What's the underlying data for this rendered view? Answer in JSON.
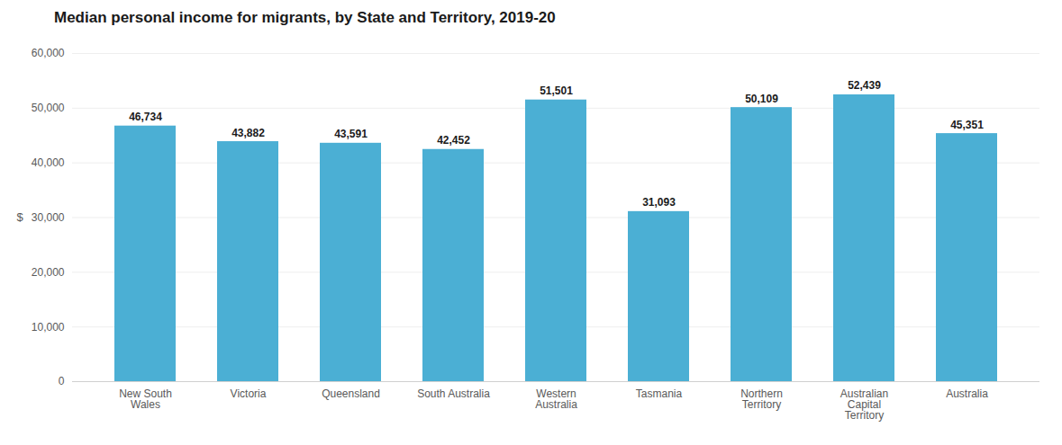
{
  "chart_data": {
    "type": "bar",
    "title": "Median personal income for migrants, by State and Territory, 2019-20",
    "categories": [
      "New South\nWales",
      "Victoria",
      "Queensland",
      "South Australia",
      "Western\nAustralia",
      "Tasmania",
      "Northern\nTerritory",
      "Australian\nCapital\nTerritory",
      "Australia"
    ],
    "values": [
      46734,
      43882,
      43591,
      42452,
      51501,
      31093,
      50109,
      52439,
      45351
    ],
    "value_labels": [
      "46,734",
      "43,882",
      "43,591",
      "42,452",
      "51,501",
      "31,093",
      "50,109",
      "52,439",
      "45,351"
    ],
    "data_labels": true,
    "color": "#4bafd4",
    "ylabel": "$",
    "ylim": [
      0,
      60000
    ],
    "yticks": [
      0,
      {
        "value": 10000,
        "label": "10,000"
      },
      {
        "value": 20000,
        "label": "20,000"
      },
      {
        "value": 30000,
        "label": "30,000"
      },
      {
        "value": 40000,
        "label": "40,000"
      },
      {
        "value": 50000,
        "label": "50,000"
      },
      {
        "value": 60000,
        "label": "60,000"
      }
    ],
    "grid": true
  }
}
